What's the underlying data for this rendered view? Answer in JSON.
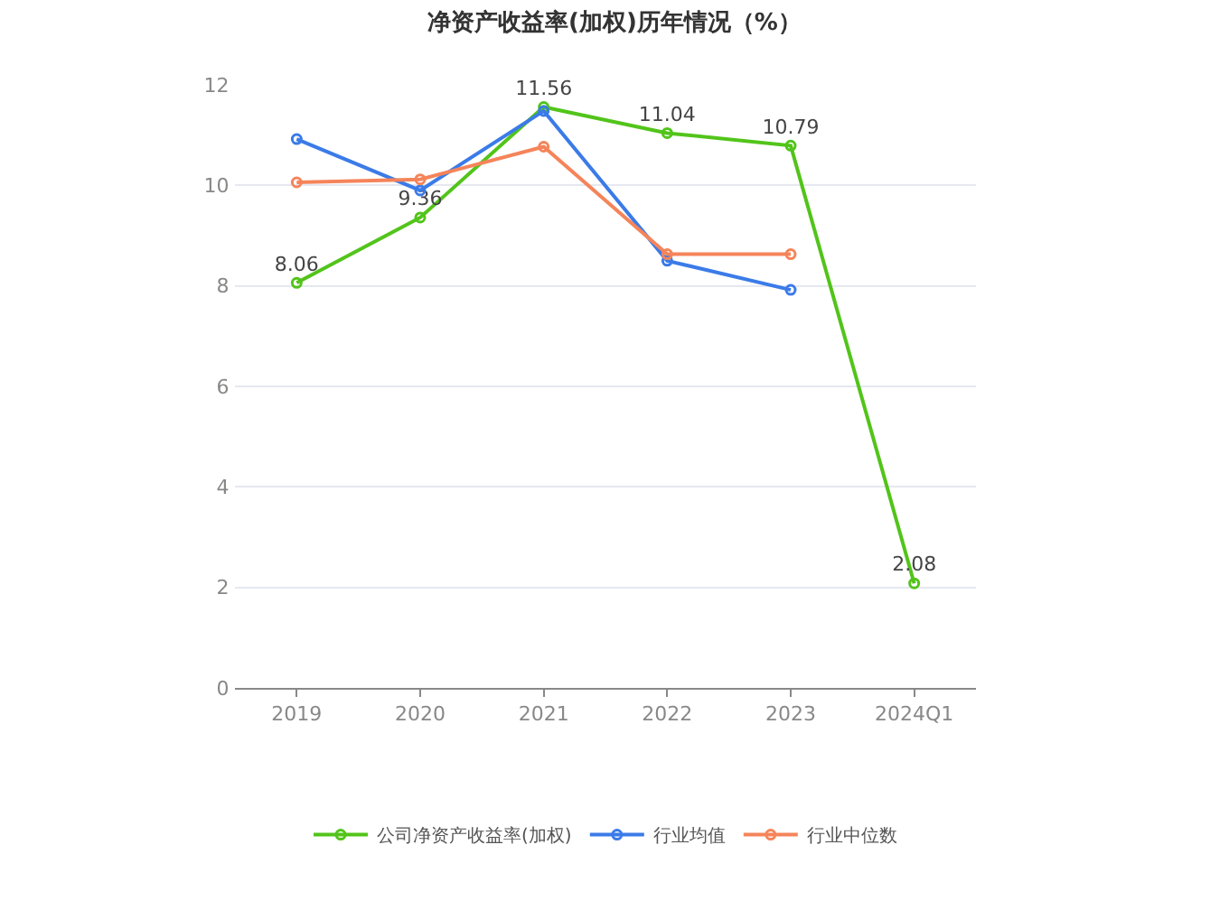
{
  "chart_data": {
    "type": "line",
    "title": "净资产收益率(加权)历年情况（%）",
    "categories": [
      "2019",
      "2020",
      "2021",
      "2022",
      "2023",
      "2024Q1"
    ],
    "series": [
      {
        "name": "公司净资产收益率(加权)",
        "color": "#52c41a",
        "values": [
          8.06,
          9.36,
          11.56,
          11.04,
          10.79,
          2.08
        ],
        "value_labels": [
          "8.06",
          "9.36",
          "11.56",
          "11.04",
          "10.79",
          "2.08"
        ]
      },
      {
        "name": "行业均值",
        "color": "#3b7be8",
        "values": [
          10.92,
          9.9,
          11.48,
          8.5,
          7.92,
          null
        ]
      },
      {
        "name": "行业中位数",
        "color": "#f5845a",
        "values": [
          10.06,
          10.12,
          10.77,
          8.63,
          8.63,
          null
        ]
      }
    ],
    "ylim": [
      0,
      12
    ],
    "yticks": [
      0,
      2,
      4,
      6,
      8,
      10,
      12
    ],
    "grid": "y",
    "legend": "bottom",
    "marker": "circle",
    "line_style": "solid"
  }
}
